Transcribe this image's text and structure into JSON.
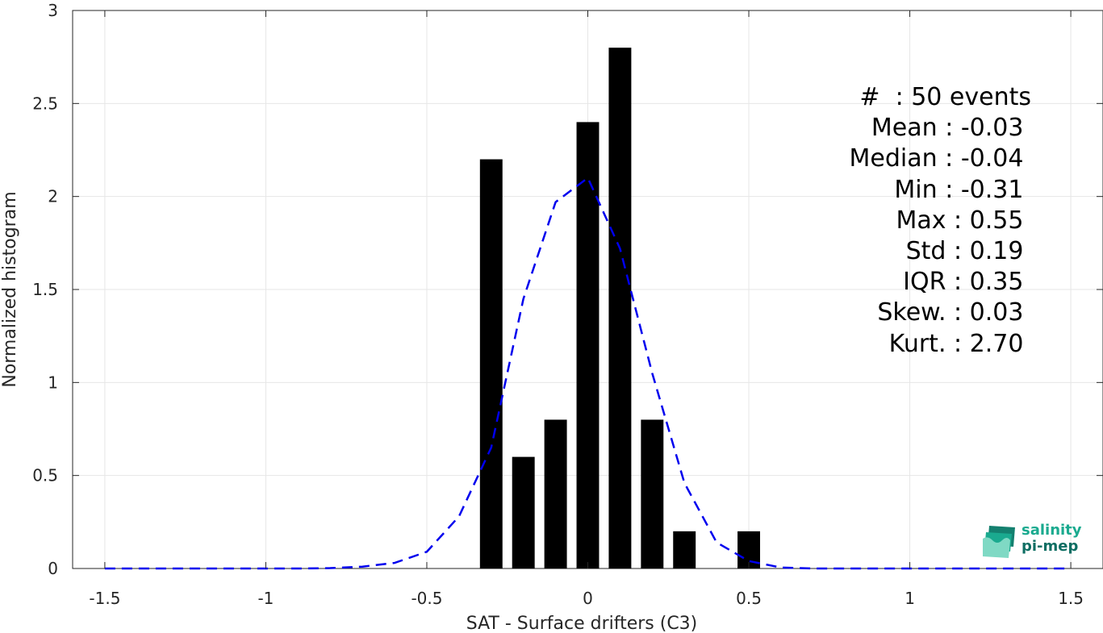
{
  "chart_data": {
    "type": "bar",
    "xlabel": "SAT - Surface drifters (C3)",
    "ylabel": "Normalized histogram",
    "xlim": [
      -1.6,
      1.6
    ],
    "ylim": [
      0,
      3
    ],
    "xticks": [
      -1.5,
      -1,
      -0.5,
      0,
      0.5,
      1,
      1.5
    ],
    "xtick_labels": [
      "-1.5",
      "-1",
      "-0.5",
      "0",
      "0.5",
      "1",
      "1.5"
    ],
    "yticks": [
      0,
      0.5,
      1,
      1.5,
      2,
      2.5,
      3
    ],
    "ytick_labels": [
      "0",
      "0.5",
      "1",
      "1.5",
      "2",
      "2.5",
      "3"
    ],
    "grid": true,
    "bar_color": "#000000",
    "bars": {
      "centers": [
        -0.3,
        -0.2,
        -0.1,
        0.0,
        0.1,
        0.2,
        0.3,
        0.5
      ],
      "values": [
        2.2,
        0.6,
        0.8,
        2.4,
        2.8,
        0.8,
        0.2,
        0.2
      ],
      "width": 0.07
    },
    "fit_curve": {
      "style": "dashed",
      "color": "#0000ee",
      "x": [
        -1.5,
        -1.4,
        -1.3,
        -1.2,
        -1.1,
        -1.0,
        -0.9,
        -0.8,
        -0.7,
        -0.6,
        -0.5,
        -0.4,
        -0.3,
        -0.2,
        -0.1,
        0.0,
        0.1,
        0.2,
        0.3,
        0.4,
        0.5,
        0.6,
        0.7,
        0.8,
        0.9,
        1.0,
        1.1,
        1.2,
        1.3,
        1.4,
        1.5
      ],
      "y": [
        0,
        0,
        0,
        0,
        0,
        0,
        0,
        0.002,
        0.01,
        0.03,
        0.09,
        0.28,
        0.65,
        1.45,
        1.97,
        2.1,
        1.72,
        1.05,
        0.46,
        0.14,
        0.04,
        0.005,
        0,
        0,
        0,
        0,
        0,
        0,
        0,
        0,
        0
      ]
    }
  },
  "stats": [
    "#  : 50 events",
    "Mean : -0.03 ",
    "Median : -0.04 ",
    "Min : -0.31 ",
    "Max : 0.55 ",
    "Std : 0.19 ",
    "IQR : 0.35 ",
    "Skew. : 0.03 ",
    "Kurt. : 2.70 "
  ],
  "logo": {
    "line1": "salinity",
    "line2": "pi-mep",
    "color_primary": "#1aaa8f",
    "color_secondary": "#0e6e63"
  }
}
